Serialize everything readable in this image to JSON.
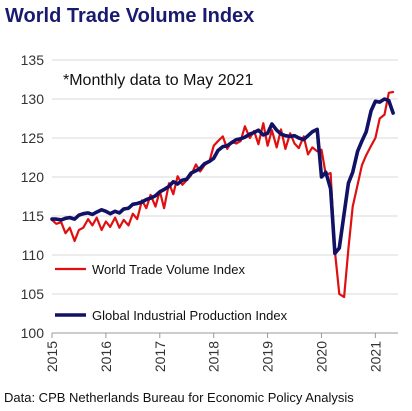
{
  "title": "World Trade Volume Index",
  "source": "Data: CPB Netherlands Bureau for Economic Policy Analysis",
  "chart_data": {
    "type": "line",
    "annotation": "*Monthly data to May 2021",
    "ylim": [
      100,
      135
    ],
    "yticks": [
      100,
      105,
      110,
      115,
      120,
      125,
      130,
      135
    ],
    "xlim": [
      2015,
      2021.42
    ],
    "xticks": [
      2015,
      2016,
      2017,
      2018,
      2019,
      2020,
      2021
    ],
    "xtick_labels": [
      "2015",
      "2016",
      "2017",
      "2018",
      "2019",
      "2020",
      "2021"
    ],
    "grid": "horizontal",
    "legend_placement": "inside-bottom-left",
    "series": [
      {
        "name": "World Trade Volume Index",
        "color": "#e01010",
        "x": [
          2015.0,
          2015.08,
          2015.17,
          2015.25,
          2015.33,
          2015.42,
          2015.5,
          2015.58,
          2015.67,
          2015.75,
          2015.83,
          2015.92,
          2016.0,
          2016.08,
          2016.17,
          2016.25,
          2016.33,
          2016.42,
          2016.5,
          2016.58,
          2016.67,
          2016.75,
          2016.83,
          2016.92,
          2017.0,
          2017.08,
          2017.17,
          2017.25,
          2017.33,
          2017.42,
          2017.5,
          2017.58,
          2017.67,
          2017.75,
          2017.83,
          2017.92,
          2018.0,
          2018.08,
          2018.17,
          2018.25,
          2018.33,
          2018.42,
          2018.5,
          2018.58,
          2018.67,
          2018.75,
          2018.83,
          2018.92,
          2019.0,
          2019.08,
          2019.17,
          2019.25,
          2019.33,
          2019.42,
          2019.5,
          2019.58,
          2019.67,
          2019.75,
          2019.83,
          2019.92,
          2020.0,
          2020.08,
          2020.17,
          2020.25,
          2020.33,
          2020.42,
          2020.5,
          2020.58,
          2020.67,
          2020.75,
          2020.83,
          2020.92,
          2021.0,
          2021.08,
          2021.17,
          2021.25,
          2021.33
        ],
        "values": [
          114.5,
          114.0,
          114.2,
          112.8,
          113.5,
          111.8,
          113.2,
          113.5,
          114.6,
          113.8,
          114.8,
          113.2,
          114.3,
          113.6,
          114.8,
          113.5,
          114.5,
          113.8,
          115.3,
          114.6,
          117.0,
          116.0,
          117.7,
          116.2,
          118.2,
          116.0,
          119.2,
          117.8,
          120.1,
          119.0,
          119.6,
          120.2,
          121.6,
          120.7,
          121.5,
          122.0,
          124.0,
          124.6,
          125.2,
          123.6,
          124.5,
          124.3,
          124.6,
          126.5,
          125.0,
          125.9,
          124.2,
          126.9,
          124.0,
          126.0,
          123.8,
          126.1,
          123.6,
          125.6,
          124.3,
          123.7,
          125.2,
          122.9,
          123.8,
          123.3,
          123.5,
          120.3,
          120.5,
          110.5,
          105.0,
          104.6,
          110.8,
          116.2,
          119.0,
          121.5,
          122.8,
          124.0,
          125.0,
          127.5,
          128.0,
          130.8,
          130.9
        ]
      },
      {
        "name": "Global Industrial Production Index",
        "color": "#111166",
        "x": [
          2015.0,
          2015.08,
          2015.17,
          2015.25,
          2015.33,
          2015.42,
          2015.5,
          2015.58,
          2015.67,
          2015.75,
          2015.83,
          2015.92,
          2016.0,
          2016.08,
          2016.17,
          2016.25,
          2016.33,
          2016.42,
          2016.5,
          2016.58,
          2016.67,
          2016.75,
          2016.83,
          2016.92,
          2017.0,
          2017.08,
          2017.17,
          2017.25,
          2017.33,
          2017.42,
          2017.5,
          2017.58,
          2017.67,
          2017.75,
          2017.83,
          2017.92,
          2018.0,
          2018.08,
          2018.17,
          2018.25,
          2018.33,
          2018.42,
          2018.5,
          2018.58,
          2018.67,
          2018.75,
          2018.83,
          2018.92,
          2019.0,
          2019.08,
          2019.17,
          2019.25,
          2019.33,
          2019.42,
          2019.5,
          2019.58,
          2019.67,
          2019.75,
          2019.83,
          2019.92,
          2020.0,
          2020.08,
          2020.17,
          2020.25,
          2020.33,
          2020.42,
          2020.5,
          2020.58,
          2020.67,
          2020.75,
          2020.83,
          2020.92,
          2021.0,
          2021.08,
          2021.17,
          2021.25,
          2021.33
        ],
        "values": [
          114.6,
          114.6,
          114.5,
          114.7,
          114.8,
          114.6,
          115.1,
          115.3,
          115.4,
          115.2,
          115.5,
          115.8,
          115.6,
          115.3,
          115.6,
          115.4,
          115.9,
          116.0,
          116.5,
          116.6,
          116.8,
          117.1,
          117.3,
          117.6,
          118.1,
          118.4,
          118.8,
          119.4,
          119.1,
          119.6,
          119.7,
          120.5,
          120.8,
          121.1,
          121.7,
          122.0,
          122.4,
          123.4,
          123.9,
          124.0,
          124.4,
          124.8,
          124.9,
          125.1,
          125.5,
          125.7,
          126.0,
          125.4,
          125.6,
          126.8,
          126.0,
          125.5,
          125.3,
          125.2,
          125.3,
          125.0,
          124.8,
          125.3,
          125.8,
          126.1,
          120.0,
          120.6,
          118.5,
          110.2,
          110.9,
          115.3,
          119.2,
          120.6,
          123.3,
          124.6,
          125.8,
          128.5,
          129.7,
          129.6,
          130.0,
          129.8,
          128.2
        ]
      }
    ]
  }
}
